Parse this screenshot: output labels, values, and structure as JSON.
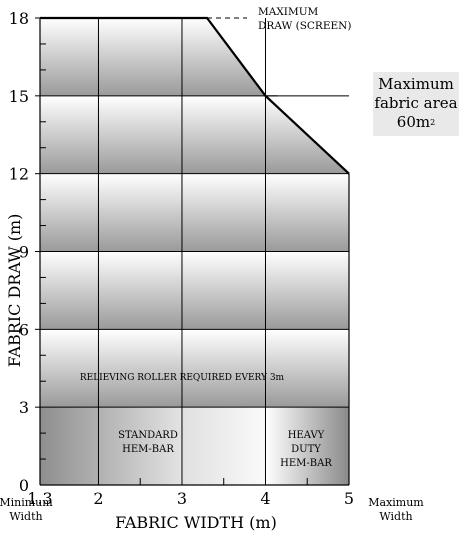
{
  "chart_data": {
    "type": "area",
    "xlabel": "FABRIC WIDTH (m)",
    "ylabel": "FABRIC DRAW (m)",
    "xlim": [
      1.3,
      5
    ],
    "ylim": [
      0,
      18
    ],
    "x_ticks": [
      "1.3",
      "2",
      "3",
      "4",
      "5"
    ],
    "y_ticks": [
      "0",
      "3",
      "6",
      "9",
      "12",
      "15",
      "18"
    ],
    "x_min_label": [
      "Minimum",
      "Width"
    ],
    "x_max_label": [
      "Maximum",
      "Width"
    ],
    "series": [
      {
        "name": "",
        "x": [
          1.3,
          3.3,
          4,
          5
        ],
        "y": [
          18,
          18,
          15,
          12
        ]
      }
    ],
    "bands_y": [
      0,
      3,
      6,
      9,
      12,
      15,
      18
    ],
    "zones_x": [
      1.3,
      2,
      3,
      4,
      5
    ],
    "annotations": [
      {
        "text": [
          "MAXIMUM",
          "DRAW (SCREEN)"
        ]
      },
      {
        "text": [
          "RELIEVING ROLLER REQUIRED EVERY 3m"
        ]
      },
      {
        "text": [
          "STANDARD",
          "HEM-BAR"
        ]
      },
      {
        "text": [
          "HEAVY",
          "DUTY",
          "HEM-BAR"
        ]
      }
    ],
    "note": {
      "lines": [
        "Maximum",
        "fabric area",
        "60m"
      ],
      "superscript": "2"
    },
    "grid": true
  }
}
